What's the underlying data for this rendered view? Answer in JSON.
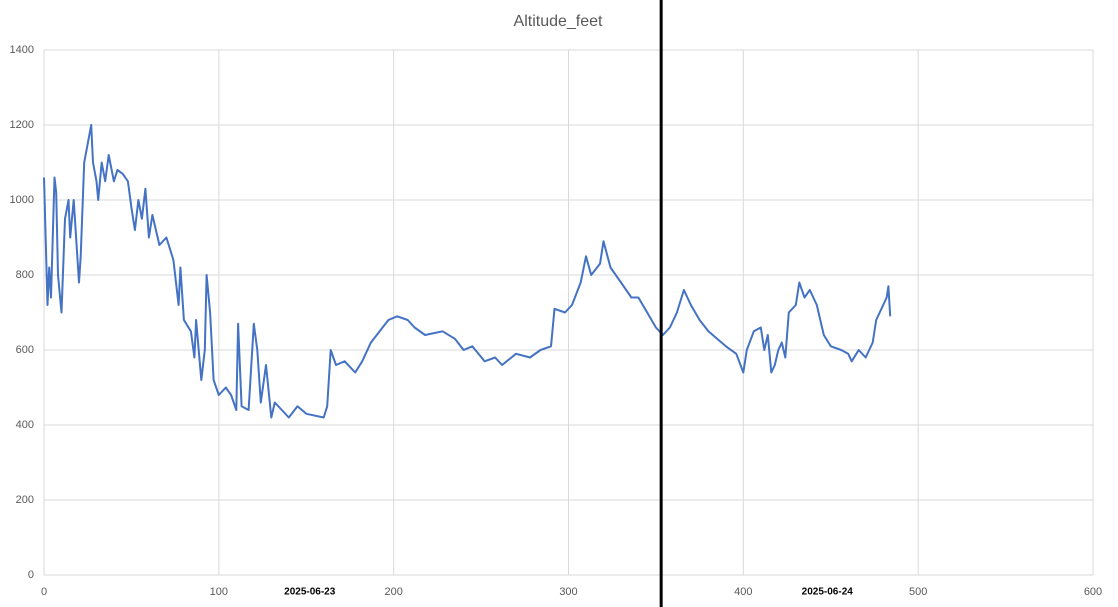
{
  "chart_data": {
    "type": "line",
    "title": "Altitude_feet",
    "x": [
      0,
      2,
      3,
      4,
      6,
      7,
      8,
      10,
      12,
      14,
      15,
      17,
      20,
      21,
      23,
      25,
      27,
      28,
      30,
      31,
      33,
      35,
      37,
      40,
      42,
      45,
      48,
      50,
      52,
      54,
      56,
      58,
      60,
      62,
      66,
      70,
      74,
      77,
      78,
      80,
      84,
      86,
      87,
      90,
      92,
      93,
      95,
      97,
      100,
      104,
      107,
      110,
      111,
      113,
      117,
      120,
      122,
      124,
      127,
      130,
      132,
      136,
      140,
      145,
      150,
      160,
      162,
      164,
      167,
      172,
      178,
      182,
      187,
      197,
      202,
      208,
      212,
      218,
      228,
      235,
      240,
      245,
      252,
      258,
      262,
      270,
      278,
      284,
      290,
      292,
      298,
      302,
      307,
      310,
      313,
      318,
      320,
      324,
      330,
      336,
      340,
      345,
      350,
      354,
      358,
      362,
      366,
      370,
      375,
      380,
      385,
      390,
      396,
      400,
      402,
      406,
      410,
      412,
      414,
      416,
      418,
      420,
      422,
      424,
      426,
      430,
      432,
      435,
      438,
      442,
      446,
      450,
      456,
      460,
      462,
      466,
      470,
      474,
      476,
      478,
      482,
      483,
      484
    ],
    "values": [
      1060,
      720,
      820,
      740,
      1060,
      1020,
      800,
      700,
      950,
      1000,
      900,
      1000,
      780,
      850,
      1100,
      1150,
      1200,
      1100,
      1050,
      1000,
      1100,
      1050,
      1120,
      1050,
      1080,
      1070,
      1050,
      980,
      920,
      1000,
      950,
      1030,
      900,
      960,
      880,
      900,
      840,
      720,
      820,
      680,
      650,
      580,
      680,
      520,
      600,
      800,
      700,
      520,
      480,
      500,
      480,
      440,
      670,
      450,
      440,
      670,
      600,
      460,
      560,
      420,
      460,
      440,
      420,
      450,
      430,
      420,
      450,
      600,
      560,
      570,
      540,
      570,
      620,
      680,
      690,
      680,
      660,
      640,
      650,
      630,
      600,
      610,
      570,
      580,
      560,
      590,
      580,
      600,
      610,
      710,
      700,
      720,
      780,
      850,
      800,
      830,
      890,
      820,
      780,
      740,
      740,
      700,
      660,
      640,
      660,
      700,
      760,
      720,
      680,
      650,
      630,
      610,
      590,
      540,
      600,
      650,
      660,
      600,
      640,
      540,
      560,
      600,
      620,
      580,
      700,
      720,
      780,
      740,
      760,
      720,
      640,
      610,
      600,
      590,
      570,
      600,
      580,
      620,
      680,
      700,
      740,
      770,
      690
    ],
    "color": "#4472c4",
    "xlim": [
      0,
      600
    ],
    "xticks": [
      0,
      100,
      200,
      300,
      400,
      500,
      600
    ],
    "ylim": [
      0,
      1400
    ],
    "yticks": [
      0,
      200,
      400,
      600,
      800,
      1000,
      1200,
      1400
    ],
    "grid": true,
    "vline_x": 353,
    "date_labels": [
      {
        "x": 152,
        "label": "2025-06-23"
      },
      {
        "x": 448,
        "label": "2025-06-24"
      }
    ]
  }
}
